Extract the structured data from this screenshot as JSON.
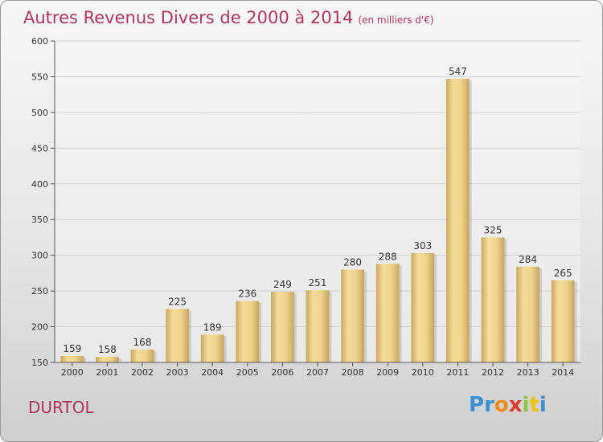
{
  "title": "Autres Revenus Divers de 2000 à 2014",
  "title_unit": "(en milliers d'€)",
  "commune": "DURTOL",
  "logo": {
    "letters": [
      "P",
      "r",
      "o",
      "x",
      "i",
      "t",
      "i"
    ],
    "colors": [
      "#3d8fd6",
      "#3d8fd6",
      "#f28a1e",
      "#e23a2c",
      "#8cc63f",
      "#f5c400",
      "#3d8fd6"
    ]
  },
  "chart_data": {
    "type": "bar",
    "categories": [
      "2000",
      "2001",
      "2002",
      "2003",
      "2004",
      "2005",
      "2006",
      "2007",
      "2008",
      "2009",
      "2010",
      "2011",
      "2012",
      "2013",
      "2014"
    ],
    "values": [
      159,
      158,
      168,
      225,
      189,
      236,
      249,
      251,
      280,
      288,
      303,
      547,
      325,
      284,
      265
    ],
    "ylim": [
      150,
      600
    ],
    "yticks": [
      150,
      200,
      250,
      300,
      350,
      400,
      450,
      500,
      550,
      600
    ],
    "grid": true,
    "bar_color": "#e8cf8a"
  }
}
